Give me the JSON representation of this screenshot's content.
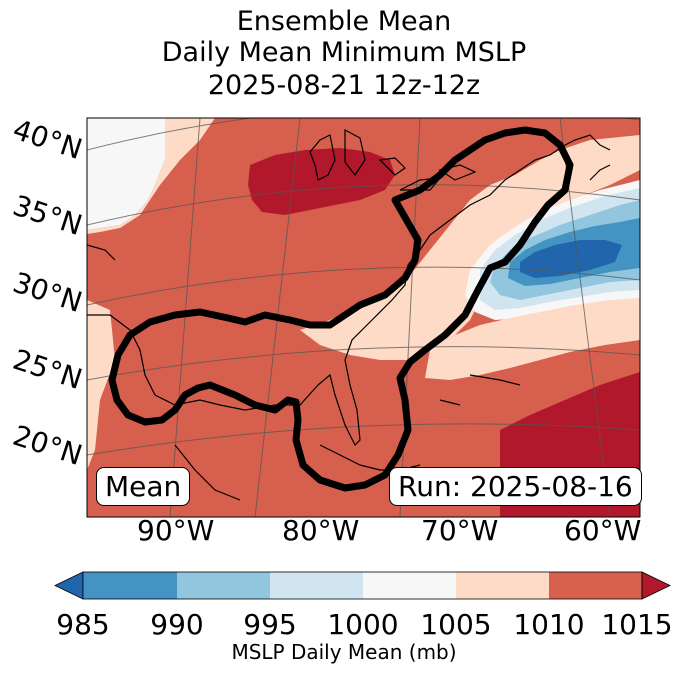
{
  "title": {
    "line1": "Ensemble Mean",
    "line2": "Daily Mean Minimum MSLP",
    "line3": "2025-08-21 12z-12z"
  },
  "map": {
    "lat_labels": [
      "40°N",
      "35°N",
      "30°N",
      "25°N",
      "20°N"
    ],
    "lon_labels": [
      "90°W",
      "80°W",
      "70°W",
      "60°W"
    ],
    "left_box": "Mean",
    "right_box": "Run: 2025-08-16"
  },
  "colorbar": {
    "ticks": [
      "985",
      "990",
      "995",
      "1000",
      "1005",
      "1010",
      "1015"
    ],
    "label": "MSLP Daily Mean (mb)",
    "colors": [
      "#2166ac",
      "#4393c3",
      "#92c5de",
      "#d1e5f0",
      "#f7f7f7",
      "#fddbc7",
      "#d6604d",
      "#b2182b"
    ]
  },
  "chart_data": {
    "type": "heatmap",
    "title": "Ensemble Mean Daily Mean Minimum MSLP 2025-08-21 12z-12z",
    "variable": "MSLP Daily Mean (mb)",
    "levels": [
      985,
      990,
      995,
      1000,
      1005,
      1010,
      1015
    ],
    "extend": "both",
    "lat_range": [
      18,
      42
    ],
    "lon_range": [
      -97,
      -60
    ]
  }
}
